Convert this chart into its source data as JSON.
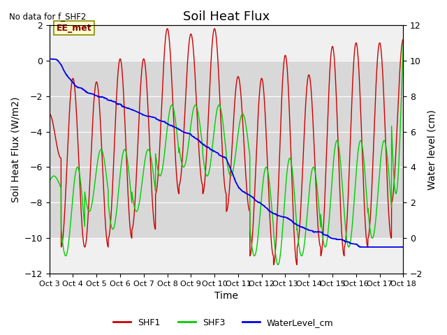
{
  "title": "Soil Heat Flux",
  "no_data_text": "No data for f_SHF2",
  "xlabel": "Time",
  "ylabel_left": "Soil Heat Flux (W/m2)",
  "ylabel_right": "Water level (cm)",
  "ylim_left": [
    -12,
    2
  ],
  "ylim_right": [
    -2,
    12
  ],
  "yticks_left": [
    -12,
    -10,
    -8,
    -6,
    -4,
    -2,
    0,
    2
  ],
  "yticks_right": [
    -2,
    0,
    2,
    4,
    6,
    8,
    10,
    12
  ],
  "shaded_region": [
    -10,
    0
  ],
  "annotation_text": "EE_met",
  "bg_color": "#f0f0f0",
  "shaded_color": "#d8d8d8",
  "line_colors": {
    "SHF1": "#cc0000",
    "SHF3": "#00cc00",
    "WaterLevel": "#0000ee"
  },
  "legend_labels": [
    "SHF1",
    "SHF3",
    "WaterLevel_cm"
  ],
  "xtick_labels": [
    "Oct 3",
    "Oct 4",
    "Oct 5",
    "Oct 6",
    "Oct 7",
    "Oct 8",
    "Oct 9",
    "Oct 10",
    "Oct 11",
    "Oct 12",
    "Oct 13",
    "Oct 14",
    "Oct 15",
    "Oct 16",
    "Oct 17",
    "Oct 18"
  ],
  "n_days": 15,
  "title_fontsize": 13,
  "axis_label_fontsize": 10,
  "tick_fontsize": 9
}
